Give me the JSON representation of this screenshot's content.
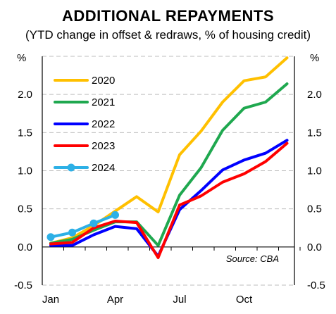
{
  "title": "ADDITIONAL REPAYMENTS",
  "subtitle": "(YTD change in offset & redraws, % of housing credit)",
  "chart_data": {
    "type": "line",
    "title": "ADDITIONAL REPAYMENTS",
    "subtitle": "(YTD change in offset & redraws, % of housing credit)",
    "ylabel_left": "%",
    "ylabel_right": "%",
    "ylim": [
      -0.5,
      2.5
    ],
    "yticks": [
      "-0.5",
      "0.0",
      "0.5",
      "1.0",
      "1.5",
      "2.0"
    ],
    "x_tick_labels": [
      "Jan",
      "Apr",
      "Jul",
      "Oct"
    ],
    "x_tick_positions": [
      0,
      3,
      6,
      9
    ],
    "grid": "horizontal dashed",
    "legend_position": "top-left",
    "annotation": "Source: CBA",
    "series": [
      {
        "name": "2020",
        "color": "#FFC000",
        "x": [
          0,
          1,
          2,
          3,
          4,
          5,
          6,
          7,
          8,
          9,
          10,
          11
        ],
        "values": [
          0.05,
          0.12,
          0.28,
          0.47,
          0.66,
          0.46,
          1.21,
          1.52,
          1.9,
          2.18,
          2.23,
          2.48
        ],
        "markers": false
      },
      {
        "name": "2021",
        "color": "#1FA84F",
        "x": [
          0,
          1,
          2,
          3,
          4,
          5,
          6,
          7,
          8,
          9,
          10,
          11
        ],
        "values": [
          0.05,
          0.1,
          0.22,
          0.33,
          0.33,
          0.02,
          0.68,
          1.04,
          1.53,
          1.82,
          1.9,
          2.14
        ],
        "markers": false
      },
      {
        "name": "2022",
        "color": "#0000FF",
        "x": [
          0,
          1,
          2,
          3,
          4,
          5,
          6,
          7,
          8,
          9,
          10,
          11
        ],
        "values": [
          0.02,
          0.02,
          0.16,
          0.27,
          0.24,
          -0.12,
          0.49,
          0.74,
          1.01,
          1.14,
          1.23,
          1.4
        ],
        "markers": false
      },
      {
        "name": "2023",
        "color": "#FF0000",
        "x": [
          0,
          1,
          2,
          3,
          4,
          5,
          6,
          7,
          8,
          9,
          10,
          11
        ],
        "values": [
          0.04,
          0.06,
          0.25,
          0.34,
          0.32,
          -0.14,
          0.55,
          0.67,
          0.85,
          0.96,
          1.12,
          1.36
        ],
        "markers": false
      },
      {
        "name": "2024",
        "color": "#2DB0E6",
        "x": [
          0,
          1,
          2,
          3
        ],
        "values": [
          0.13,
          0.19,
          0.31,
          0.42
        ],
        "markers": true
      }
    ]
  }
}
